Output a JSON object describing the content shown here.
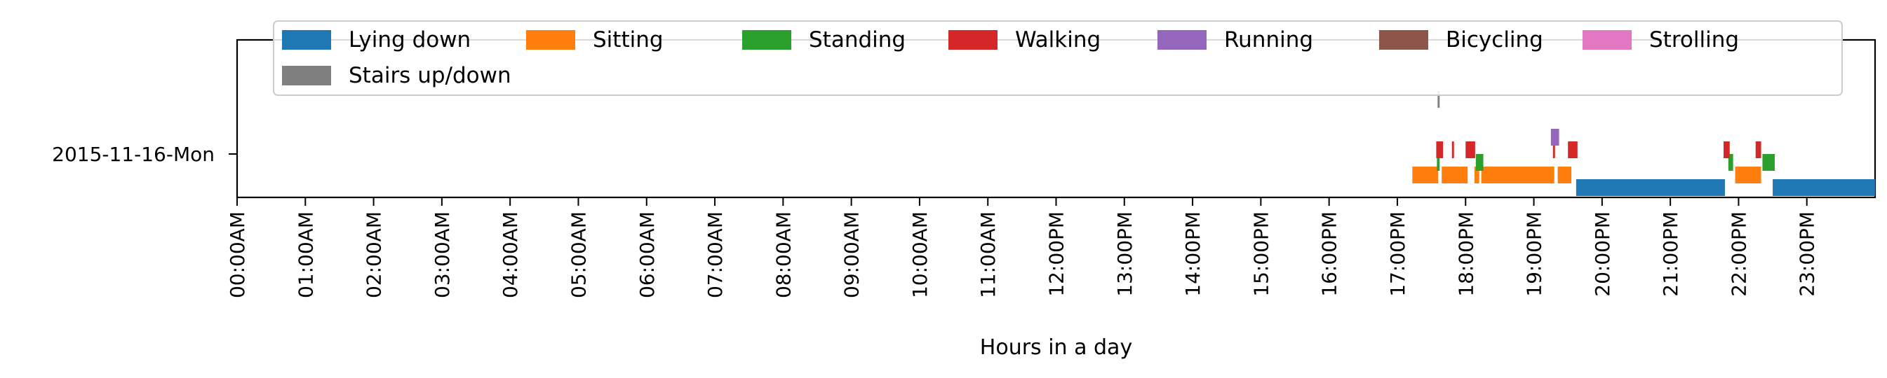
{
  "chart_data": {
    "type": "timeline",
    "title": "",
    "xlabel": "Hours in a day",
    "ylabel": "",
    "xlim": [
      0,
      24
    ],
    "rows": [
      "2015-11-16-Mon"
    ],
    "x_tick_labels": [
      "00:00AM",
      "01:00AM",
      "02:00AM",
      "03:00AM",
      "04:00AM",
      "05:00AM",
      "06:00AM",
      "07:00AM",
      "08:00AM",
      "09:00AM",
      "10:00AM",
      "11:00AM",
      "12:00PM",
      "13:00PM",
      "14:00PM",
      "15:00PM",
      "16:00PM",
      "17:00PM",
      "18:00PM",
      "19:00PM",
      "20:00PM",
      "21:00PM",
      "22:00PM",
      "23:00PM"
    ],
    "grid": false,
    "legend_position": "top",
    "series": [
      {
        "name": "Lying down",
        "color": "#1f77b4",
        "segments": [
          [
            19.62,
            21.8
          ],
          [
            22.5,
            24.0
          ]
        ]
      },
      {
        "name": "Sitting",
        "color": "#ff7f0e",
        "segments": [
          [
            17.22,
            17.6
          ],
          [
            17.65,
            18.03
          ],
          [
            18.13,
            18.2
          ],
          [
            18.23,
            19.3
          ],
          [
            19.35,
            19.55
          ],
          [
            21.95,
            22.33
          ]
        ]
      },
      {
        "name": "Standing",
        "color": "#2ca02c",
        "segments": [
          [
            17.58,
            17.62
          ],
          [
            18.15,
            18.26
          ],
          [
            21.85,
            21.92
          ],
          [
            22.35,
            22.53
          ]
        ]
      },
      {
        "name": "Walking",
        "color": "#d62728",
        "segments": [
          [
            17.57,
            17.67
          ],
          [
            17.8,
            17.83
          ],
          [
            18.0,
            18.14
          ],
          [
            19.28,
            19.31
          ],
          [
            19.5,
            19.64
          ],
          [
            21.78,
            21.87
          ],
          [
            22.25,
            22.33
          ]
        ]
      },
      {
        "name": "Running",
        "color": "#9467bd",
        "segments": [
          [
            19.25,
            19.37
          ]
        ]
      },
      {
        "name": "Bicycling",
        "color": "#8c564b",
        "segments": []
      },
      {
        "name": "Strolling",
        "color": "#e377c2",
        "segments": []
      },
      {
        "name": "Stairs up/down",
        "color": "#7f7f7f",
        "segments": [
          [
            17.59,
            17.62
          ]
        ]
      }
    ]
  }
}
